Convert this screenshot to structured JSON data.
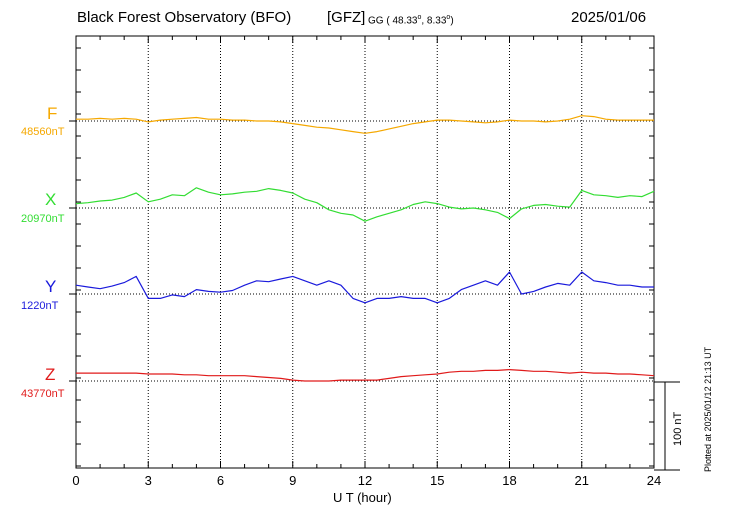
{
  "header": {
    "title": "Black Forest Observatory (BFO)",
    "institute": "[GFZ]",
    "coord_prefix": "GG ( 48.33",
    "coord_mid": ",   8.33",
    "coord_suffix": ")",
    "degree_symbol": "o",
    "date": "2025/01/06"
  },
  "footer": {
    "plotted": "Plotted at 2025/01/12 21:13 UT",
    "scale_label": "100 nT"
  },
  "chart_data": {
    "type": "line",
    "title": "Black Forest Observatory (BFO)",
    "xlabel": "U T (hour)",
    "ylabel": "",
    "xlim": [
      0,
      24
    ],
    "xticks": [
      0,
      3,
      6,
      9,
      12,
      15,
      18,
      21,
      24
    ],
    "xtick_labels": [
      "0",
      "3",
      "6",
      "9",
      "12",
      "15",
      "18",
      "21",
      "24"
    ],
    "grid": true,
    "units": "nT",
    "scale_bar_nT": 100,
    "series": [
      {
        "name": "F",
        "baseline_label": "48560nT",
        "baseline_nT": 48560,
        "color": "#f5a800",
        "x": [
          0,
          0.5,
          1,
          1.5,
          2,
          2.5,
          3,
          3.5,
          4,
          4.5,
          5,
          5.5,
          6,
          6.5,
          7,
          7.5,
          8,
          8.5,
          9,
          9.5,
          10,
          10.5,
          11,
          11.5,
          12,
          12.5,
          13,
          13.5,
          14,
          14.5,
          15,
          15.5,
          16,
          16.5,
          17,
          17.5,
          18,
          18.5,
          19,
          19.5,
          20,
          20.5,
          21,
          21.5,
          22,
          22.5,
          23,
          23.5,
          24
        ],
        "values": [
          2,
          2,
          3,
          2,
          3,
          2,
          -1,
          1,
          2,
          3,
          4,
          2,
          2,
          1,
          1,
          0,
          0,
          -1,
          -3,
          -5,
          -7,
          -8,
          -10,
          -12,
          -14,
          -12,
          -9,
          -6,
          -3,
          -1,
          1,
          1,
          0,
          -1,
          -2,
          -1,
          1,
          0,
          0,
          -1,
          0,
          2,
          6,
          5,
          2,
          1,
          1,
          1,
          1
        ]
      },
      {
        "name": "X",
        "baseline_label": "20970nT",
        "baseline_nT": 20970,
        "color": "#33dd33",
        "x": [
          0,
          0.5,
          1,
          1.5,
          2,
          2.5,
          3,
          3.5,
          4,
          4.5,
          5,
          5.5,
          6,
          6.5,
          7,
          7.5,
          8,
          8.5,
          9,
          9.5,
          10,
          10.5,
          11,
          11.5,
          12,
          12.5,
          13,
          13.5,
          14,
          14.5,
          15,
          15.5,
          16,
          16.5,
          17,
          17.5,
          18,
          18.5,
          19,
          19.5,
          20,
          20.5,
          21,
          21.5,
          22,
          22.5,
          23,
          23.5,
          24
        ],
        "values": [
          5,
          6,
          8,
          9,
          12,
          17,
          7,
          10,
          15,
          14,
          23,
          18,
          15,
          16,
          18,
          19,
          22,
          20,
          17,
          10,
          6,
          -2,
          -6,
          -8,
          -15,
          -10,
          -6,
          -2,
          4,
          7,
          5,
          1,
          -1,
          0,
          -2,
          -5,
          -12,
          -1,
          3,
          4,
          2,
          1,
          20,
          15,
          14,
          12,
          14,
          13,
          19
        ]
      },
      {
        "name": "Y",
        "baseline_label": "1220nT",
        "baseline_nT": 1220,
        "color": "#1a1adc",
        "x": [
          0,
          0.5,
          1,
          1.5,
          2,
          2.5,
          3,
          3.5,
          4,
          4.5,
          5,
          5.5,
          6,
          6.5,
          7,
          7.5,
          8,
          8.5,
          9,
          9.5,
          10,
          10.5,
          11,
          11.5,
          12,
          12.5,
          13,
          13.5,
          14,
          14.5,
          15,
          15.5,
          16,
          16.5,
          17,
          17.5,
          18,
          18.5,
          19,
          19.5,
          20,
          20.5,
          21,
          21.5,
          22,
          22.5,
          23,
          23.5,
          24
        ],
        "values": [
          10,
          8,
          6,
          9,
          13,
          20,
          -5,
          -5,
          -1,
          -3,
          5,
          3,
          2,
          4,
          10,
          15,
          14,
          17,
          20,
          15,
          10,
          15,
          10,
          -5,
          -10,
          -5,
          -5,
          -3,
          -5,
          -5,
          -10,
          -5,
          5,
          10,
          15,
          10,
          25,
          0,
          3,
          8,
          12,
          10,
          25,
          15,
          13,
          10,
          10,
          8,
          8
        ]
      },
      {
        "name": "Z",
        "baseline_label": "43770nT",
        "baseline_nT": 43770,
        "color": "#e01a1a",
        "x": [
          0,
          0.5,
          1,
          1.5,
          2,
          2.5,
          3,
          3.5,
          4,
          4.5,
          5,
          5.5,
          6,
          6.5,
          7,
          7.5,
          8,
          8.5,
          9,
          9.5,
          10,
          10.5,
          11,
          11.5,
          12,
          12.5,
          13,
          13.5,
          14,
          14.5,
          15,
          15.5,
          16,
          16.5,
          17,
          17.5,
          18,
          18.5,
          19,
          19.5,
          20,
          20.5,
          21,
          21.5,
          22,
          22.5,
          23,
          23.5,
          24
        ],
        "values": [
          9,
          9,
          9,
          9,
          9,
          9,
          8,
          8,
          8,
          7,
          7,
          6,
          6,
          6,
          6,
          5,
          4,
          3,
          1,
          0,
          0,
          0,
          1,
          1,
          1,
          1,
          3,
          5,
          6,
          7,
          8,
          10,
          11,
          11,
          12,
          12,
          13,
          12,
          11,
          11,
          10,
          9,
          10,
          9,
          9,
          8,
          8,
          7,
          6
        ]
      }
    ]
  }
}
